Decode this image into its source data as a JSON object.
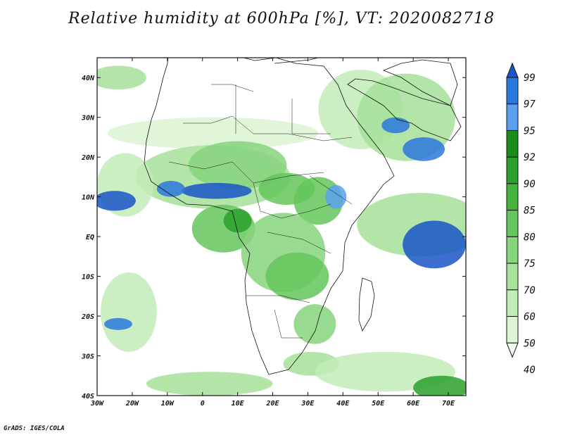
{
  "title": "Relative humidity at 600hPa [%], VT: 2020082718",
  "credit": "GrADS: IGES/COLA",
  "map": {
    "lon_range": [
      -30,
      75
    ],
    "lat_range": [
      -40,
      45
    ],
    "x_ticks": [
      {
        "lon": -30,
        "label": "30W"
      },
      {
        "lon": -20,
        "label": "20W"
      },
      {
        "lon": -10,
        "label": "10W"
      },
      {
        "lon": 0,
        "label": "0"
      },
      {
        "lon": 10,
        "label": "10E"
      },
      {
        "lon": 20,
        "label": "20E"
      },
      {
        "lon": 30,
        "label": "30E"
      },
      {
        "lon": 40,
        "label": "40E"
      },
      {
        "lon": 50,
        "label": "50E"
      },
      {
        "lon": 60,
        "label": "60E"
      },
      {
        "lon": 70,
        "label": "70E"
      }
    ],
    "y_ticks": [
      {
        "lat": 40,
        "label": "40N"
      },
      {
        "lat": 30,
        "label": "30N"
      },
      {
        "lat": 20,
        "label": "20N"
      },
      {
        "lat": 10,
        "label": "10N"
      },
      {
        "lat": 0,
        "label": "EQ"
      },
      {
        "lat": -10,
        "label": "10S"
      },
      {
        "lat": -20,
        "label": "20S"
      },
      {
        "lat": -30,
        "label": "30S"
      },
      {
        "lat": -40,
        "label": "40S"
      }
    ]
  },
  "colorbar": {
    "levels": [
      {
        "label": "40",
        "color": "#f0fcec"
      },
      {
        "label": "50",
        "color": "#dcf5d2"
      },
      {
        "label": "60",
        "color": "#c2ecb8"
      },
      {
        "label": "70",
        "color": "#a6e09a"
      },
      {
        "label": "75",
        "color": "#86d47c"
      },
      {
        "label": "80",
        "color": "#64c65c"
      },
      {
        "label": "85",
        "color": "#44b43e"
      },
      {
        "label": "90",
        "color": "#2ca02c"
      },
      {
        "label": "92",
        "color": "#1a8c1a"
      },
      {
        "label": "95",
        "color": "#5aa0ee"
      },
      {
        "label": "97",
        "color": "#2b78dc"
      },
      {
        "label": "99",
        "color": "#1a55c8"
      }
    ]
  },
  "humidity_regions": [
    {
      "lon": -24,
      "lat": 40,
      "rx": 8,
      "ry": 3,
      "level": 3
    },
    {
      "lon": 3,
      "lat": 26,
      "rx": 30,
      "ry": 4,
      "level": 1
    },
    {
      "lon": 3,
      "lat": 15,
      "rx": 22,
      "ry": 8,
      "level": 3
    },
    {
      "lon": 10,
      "lat": 18,
      "rx": 14,
      "ry": 6,
      "level": 4
    },
    {
      "lon": -22,
      "lat": 13,
      "rx": 8,
      "ry": 8,
      "level": 2
    },
    {
      "lon": -25,
      "lat": 9,
      "rx": 6,
      "ry": 2.5,
      "level": 11
    },
    {
      "lon": 4,
      "lat": 11.5,
      "rx": 10,
      "ry": 2,
      "level": 11
    },
    {
      "lon": -9,
      "lat": 12,
      "rx": 4,
      "ry": 2,
      "level": 10
    },
    {
      "lon": 6,
      "lat": 2,
      "rx": 9,
      "ry": 6,
      "level": 5
    },
    {
      "lon": 10,
      "lat": 4,
      "rx": 4,
      "ry": 3,
      "level": 7
    },
    {
      "lon": 24,
      "lat": 12,
      "rx": 8,
      "ry": 4,
      "level": 5
    },
    {
      "lon": 33,
      "lat": 9,
      "rx": 7,
      "ry": 6,
      "level": 5
    },
    {
      "lon": 38,
      "lat": 10,
      "rx": 3,
      "ry": 3,
      "level": 9
    },
    {
      "lon": 23,
      "lat": -4,
      "rx": 12,
      "ry": 10,
      "level": 4
    },
    {
      "lon": 27,
      "lat": -10,
      "rx": 9,
      "ry": 6,
      "level": 5
    },
    {
      "lon": 32,
      "lat": -22,
      "rx": 6,
      "ry": 5,
      "level": 4
    },
    {
      "lon": 31,
      "lat": -32,
      "rx": 8,
      "ry": 3,
      "level": 3
    },
    {
      "lon": 45,
      "lat": 32,
      "rx": 12,
      "ry": 10,
      "level": 2
    },
    {
      "lon": 58,
      "lat": 30,
      "rx": 14,
      "ry": 11,
      "level": 3
    },
    {
      "lon": 63,
      "lat": 22,
      "rx": 6,
      "ry": 3,
      "level": 10
    },
    {
      "lon": 55,
      "lat": 28,
      "rx": 4,
      "ry": 2,
      "level": 10
    },
    {
      "lon": 62,
      "lat": 3,
      "rx": 18,
      "ry": 8,
      "level": 3
    },
    {
      "lon": 66,
      "lat": -2,
      "rx": 9,
      "ry": 6,
      "level": 11
    },
    {
      "lon": -21,
      "lat": -19,
      "rx": 8,
      "ry": 10,
      "level": 2
    },
    {
      "lon": -24,
      "lat": -22,
      "rx": 4,
      "ry": 1.5,
      "level": 10
    },
    {
      "lon": 52,
      "lat": -34,
      "rx": 20,
      "ry": 5,
      "level": 2
    },
    {
      "lon": 2,
      "lat": -37,
      "rx": 18,
      "ry": 3,
      "level": 3
    },
    {
      "lon": 68,
      "lat": -38,
      "rx": 8,
      "ry": 3,
      "level": 7
    }
  ]
}
